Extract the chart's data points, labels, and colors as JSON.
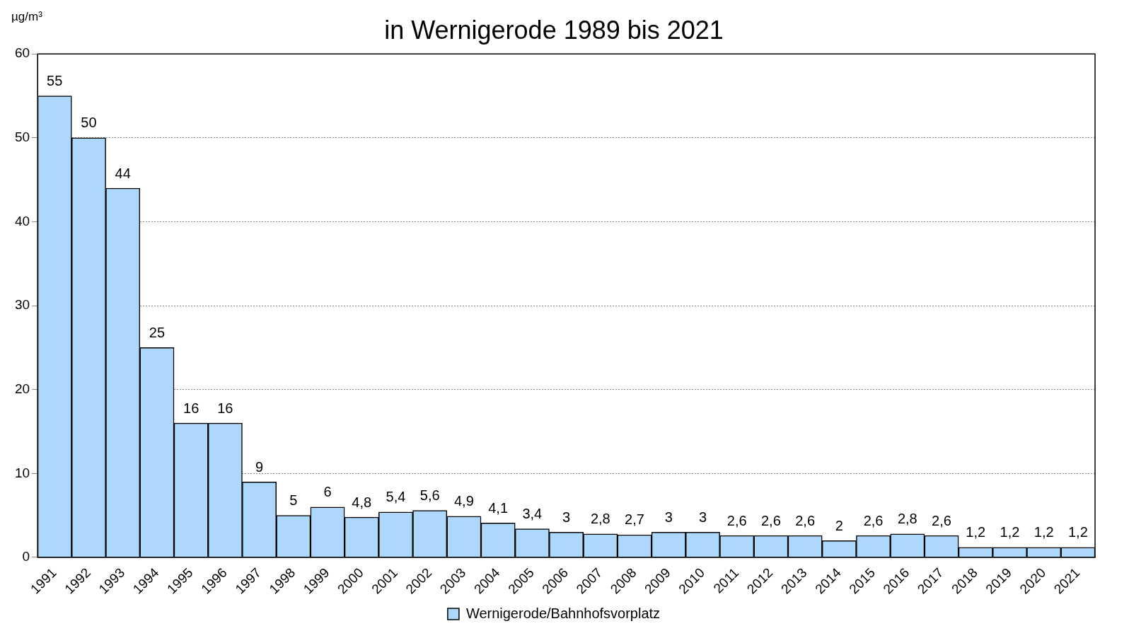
{
  "chart_data": {
    "type": "bar",
    "title": "in Wernigerode 1989 bis 2021",
    "ylabel": "µg/m³",
    "categories": [
      "1991",
      "1992",
      "1993",
      "1994",
      "1995",
      "1996",
      "1997",
      "1998",
      "1999",
      "2000",
      "2001",
      "2002",
      "2003",
      "2004",
      "2005",
      "2006",
      "2007",
      "2008",
      "2009",
      "2010",
      "2011",
      "2012",
      "2013",
      "2014",
      "2015",
      "2016",
      "2017",
      "2018",
      "2019",
      "2020",
      "2021"
    ],
    "series": [
      {
        "name": "Wernigerode/Bahnhofsvorplatz",
        "color": "#add8fb",
        "values": [
          55,
          50,
          44,
          25,
          16,
          16,
          9,
          5,
          6,
          4.8,
          5.4,
          5.6,
          4.9,
          4.1,
          3.4,
          3,
          2.8,
          2.7,
          3,
          3,
          2.6,
          2.6,
          2.6,
          2,
          2.6,
          2.8,
          2.6,
          1.2,
          1.2,
          1.2,
          1.2
        ],
        "value_labels": [
          "55",
          "50",
          "44",
          "25",
          "16",
          "16",
          "9",
          "5",
          "6",
          "4,8",
          "5,4",
          "5,6",
          "4,9",
          "4,1",
          "3,4",
          "3",
          "2,8",
          "2,7",
          "3",
          "3",
          "2,6",
          "2,6",
          "2,6",
          "2",
          "2,6",
          "2,8",
          "2,6",
          "1,2",
          "1,2",
          "1,2",
          "1,2"
        ]
      }
    ],
    "ylim": [
      0,
      60
    ],
    "yticks": [
      0,
      10,
      20,
      30,
      40,
      50,
      60
    ],
    "grid": "y",
    "legend": "bottom"
  }
}
